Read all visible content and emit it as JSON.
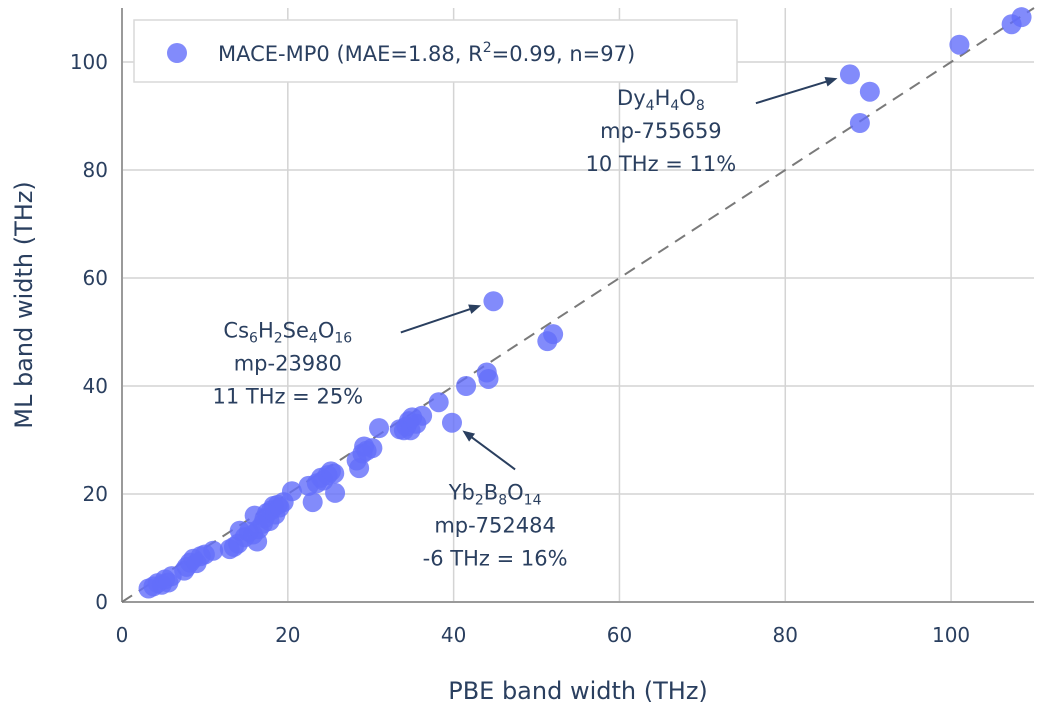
{
  "chart_data": {
    "type": "scatter",
    "xlabel": "PBE band width (THz)",
    "ylabel": "ML band width (THz)",
    "xlim": [
      0,
      110
    ],
    "ylim": [
      0,
      110
    ],
    "xticks": [
      0,
      20,
      40,
      60,
      80,
      100
    ],
    "yticks": [
      0,
      20,
      40,
      60,
      80,
      100
    ],
    "grid": true,
    "legend_placement": "top-left",
    "marker_color": "#636efa",
    "series": [
      {
        "name": "MACE-MP0 (MAE=1.88, R²=0.99, n=97)",
        "legend": {
          "before": "MACE-MP0 (MAE=1.88, R",
          "sup": "2",
          "after": "=0.99, n=97)"
        },
        "points": [
          [
            3.2,
            2.5
          ],
          [
            3.8,
            2.9
          ],
          [
            4.3,
            3.5
          ],
          [
            4.8,
            3.2
          ],
          [
            5.2,
            4.2
          ],
          [
            5.6,
            3.6
          ],
          [
            6.0,
            4.8
          ],
          [
            7.5,
            5.8
          ],
          [
            7.8,
            6.5
          ],
          [
            8.2,
            7.3
          ],
          [
            8.6,
            8.0
          ],
          [
            9.0,
            7.2
          ],
          [
            9.5,
            8.5
          ],
          [
            10.0,
            8.8
          ],
          [
            11.0,
            9.5
          ],
          [
            13.0,
            9.8
          ],
          [
            13.5,
            10.2
          ],
          [
            14.0,
            10.8
          ],
          [
            14.2,
            13.2
          ],
          [
            14.8,
            12.0
          ],
          [
            15.3,
            13.0
          ],
          [
            15.8,
            12.5
          ],
          [
            16.0,
            16.0
          ],
          [
            16.3,
            11.2
          ],
          [
            16.5,
            13.5
          ],
          [
            17.0,
            14.5
          ],
          [
            17.2,
            15.5
          ],
          [
            17.5,
            16.5
          ],
          [
            17.8,
            15.0
          ],
          [
            18.0,
            17.0
          ],
          [
            18.3,
            17.8
          ],
          [
            18.5,
            16.2
          ],
          [
            18.8,
            18.0
          ],
          [
            19.0,
            17.5
          ],
          [
            19.5,
            18.5
          ],
          [
            20.5,
            20.5
          ],
          [
            22.5,
            21.5
          ],
          [
            23.0,
            18.5
          ],
          [
            23.5,
            22.0
          ],
          [
            24.0,
            23.0
          ],
          [
            24.3,
            22.5
          ],
          [
            24.8,
            23.5
          ],
          [
            25.2,
            24.2
          ],
          [
            25.6,
            23.8
          ],
          [
            25.7,
            20.2
          ],
          [
            28.3,
            26.2
          ],
          [
            28.6,
            24.8
          ],
          [
            29.0,
            27.5
          ],
          [
            29.2,
            28.8
          ],
          [
            29.5,
            28.0
          ],
          [
            30.2,
            28.5
          ],
          [
            31.0,
            32.2
          ],
          [
            33.5,
            32.0
          ],
          [
            34.0,
            31.8
          ],
          [
            34.3,
            32.5
          ],
          [
            34.6,
            33.5
          ],
          [
            34.8,
            31.8
          ],
          [
            35.0,
            34.2
          ],
          [
            35.5,
            33.0
          ],
          [
            36.2,
            34.5
          ],
          [
            38.2,
            37.0
          ],
          [
            39.8,
            33.2
          ],
          [
            41.5,
            40.0
          ],
          [
            44.0,
            42.5
          ],
          [
            44.2,
            41.3
          ],
          [
            44.8,
            55.7
          ],
          [
            51.3,
            48.3
          ],
          [
            52.0,
            49.6
          ],
          [
            87.8,
            97.7
          ],
          [
            89.0,
            88.7
          ],
          [
            90.2,
            94.5
          ],
          [
            101.0,
            103.2
          ],
          [
            107.3,
            107.0
          ],
          [
            108.5,
            108.3
          ]
        ]
      }
    ],
    "annotations": [
      {
        "formula": [
          [
            "Dy",
            ""
          ],
          [
            "4",
            "sub"
          ],
          [
            "H",
            ""
          ],
          [
            "4",
            "sub"
          ],
          [
            "O",
            ""
          ],
          [
            "8",
            "sub"
          ]
        ],
        "id": "mp-755659",
        "diff": "10 THz = 11%",
        "point": [
          87.8,
          97.7
        ],
        "text_anchor_data": [
          65,
          92
        ]
      },
      {
        "formula": [
          [
            "Cs",
            ""
          ],
          [
            "6",
            "sub"
          ],
          [
            "H",
            ""
          ],
          [
            "2",
            "sub"
          ],
          [
            "Se",
            ""
          ],
          [
            "4",
            "sub"
          ],
          [
            "O",
            ""
          ],
          [
            "16",
            "sub"
          ]
        ],
        "id": "mp-23980",
        "diff": "11 THz = 25%",
        "point": [
          44.8,
          55.7
        ],
        "text_anchor_data": [
          20,
          49
        ]
      },
      {
        "formula": [
          [
            "Yb",
            ""
          ],
          [
            "2",
            "sub"
          ],
          [
            "B",
            ""
          ],
          [
            "8",
            "sub"
          ],
          [
            "O",
            ""
          ],
          [
            "14",
            "sub"
          ]
        ],
        "id": "mp-752484",
        "diff": "-6 THz = 16%",
        "point": [
          39.8,
          33.2
        ],
        "text_anchor_data": [
          45,
          19
        ]
      }
    ]
  }
}
